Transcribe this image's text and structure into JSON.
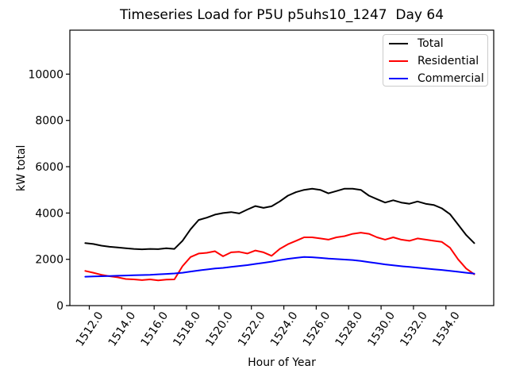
{
  "chart_data": {
    "type": "line",
    "title": "Timeseries Load for P5U p5uhs10_1247  Day 64",
    "xlabel": "Hour of Year",
    "ylabel": "kW total",
    "grid": false,
    "legend_position": "upper right",
    "xlim": [
      1510.8,
      1536.95
    ],
    "ylim": [
      0,
      11900
    ],
    "x_ticks": [
      1512,
      1514,
      1516,
      1518,
      1520,
      1522,
      1524,
      1526,
      1528,
      1530,
      1532,
      1534
    ],
    "x_tick_labels": [
      "1512.0",
      "1514.0",
      "1516.0",
      "1518.0",
      "1520.0",
      "1522.0",
      "1524.0",
      "1526.0",
      "1528.0",
      "1530.0",
      "1532.0",
      "1534.0"
    ],
    "y_ticks": [
      0,
      2000,
      4000,
      6000,
      8000,
      10000
    ],
    "x": [
      1511.75,
      1512.25,
      1512.75,
      1513.25,
      1513.75,
      1514.25,
      1514.75,
      1515.25,
      1515.75,
      1516.25,
      1516.75,
      1517.25,
      1517.75,
      1518.25,
      1518.75,
      1519.25,
      1519.75,
      1520.25,
      1520.75,
      1521.25,
      1521.75,
      1522.25,
      1522.75,
      1523.25,
      1523.75,
      1524.25,
      1524.75,
      1525.25,
      1525.75,
      1526.25,
      1526.75,
      1527.25,
      1527.75,
      1528.25,
      1528.75,
      1529.25,
      1529.75,
      1530.25,
      1530.75,
      1531.25,
      1531.75,
      1532.25,
      1532.75,
      1533.25,
      1533.75,
      1534.25,
      1534.75,
      1535.25,
      1535.75
    ],
    "series": [
      {
        "name": "Total",
        "color": "#000000",
        "values": [
          2700,
          2660,
          2590,
          2540,
          2510,
          2480,
          2450,
          2430,
          2450,
          2440,
          2480,
          2450,
          2800,
          3300,
          3700,
          3800,
          3930,
          4000,
          4040,
          3980,
          4150,
          4300,
          4220,
          4290,
          4500,
          4750,
          4900,
          5000,
          5050,
          5000,
          4850,
          4950,
          5050,
          5050,
          5000,
          4750,
          4600,
          4450,
          4550,
          4450,
          4400,
          4500,
          4400,
          4350,
          4200,
          3950,
          3500,
          3050,
          2700
        ]
      },
      {
        "name": "Residential",
        "color": "#ff0000",
        "values": [
          1500,
          1420,
          1330,
          1270,
          1220,
          1150,
          1130,
          1100,
          1130,
          1090,
          1120,
          1130,
          1700,
          2100,
          2250,
          2280,
          2350,
          2130,
          2300,
          2320,
          2250,
          2380,
          2300,
          2150,
          2450,
          2650,
          2800,
          2950,
          2950,
          2900,
          2850,
          2950,
          3000,
          3100,
          3150,
          3100,
          2950,
          2850,
          2950,
          2850,
          2800,
          2900,
          2850,
          2800,
          2750,
          2500,
          2000,
          1600,
          1350
        ]
      },
      {
        "name": "Commercial",
        "color": "#0000ff",
        "values": [
          1250,
          1260,
          1270,
          1280,
          1290,
          1300,
          1310,
          1320,
          1330,
          1350,
          1370,
          1390,
          1420,
          1470,
          1520,
          1560,
          1600,
          1630,
          1670,
          1710,
          1750,
          1800,
          1850,
          1900,
          1960,
          2020,
          2060,
          2100,
          2090,
          2060,
          2030,
          2010,
          1990,
          1970,
          1930,
          1880,
          1830,
          1780,
          1740,
          1700,
          1670,
          1640,
          1600,
          1570,
          1540,
          1500,
          1460,
          1420,
          1380
        ]
      }
    ]
  }
}
